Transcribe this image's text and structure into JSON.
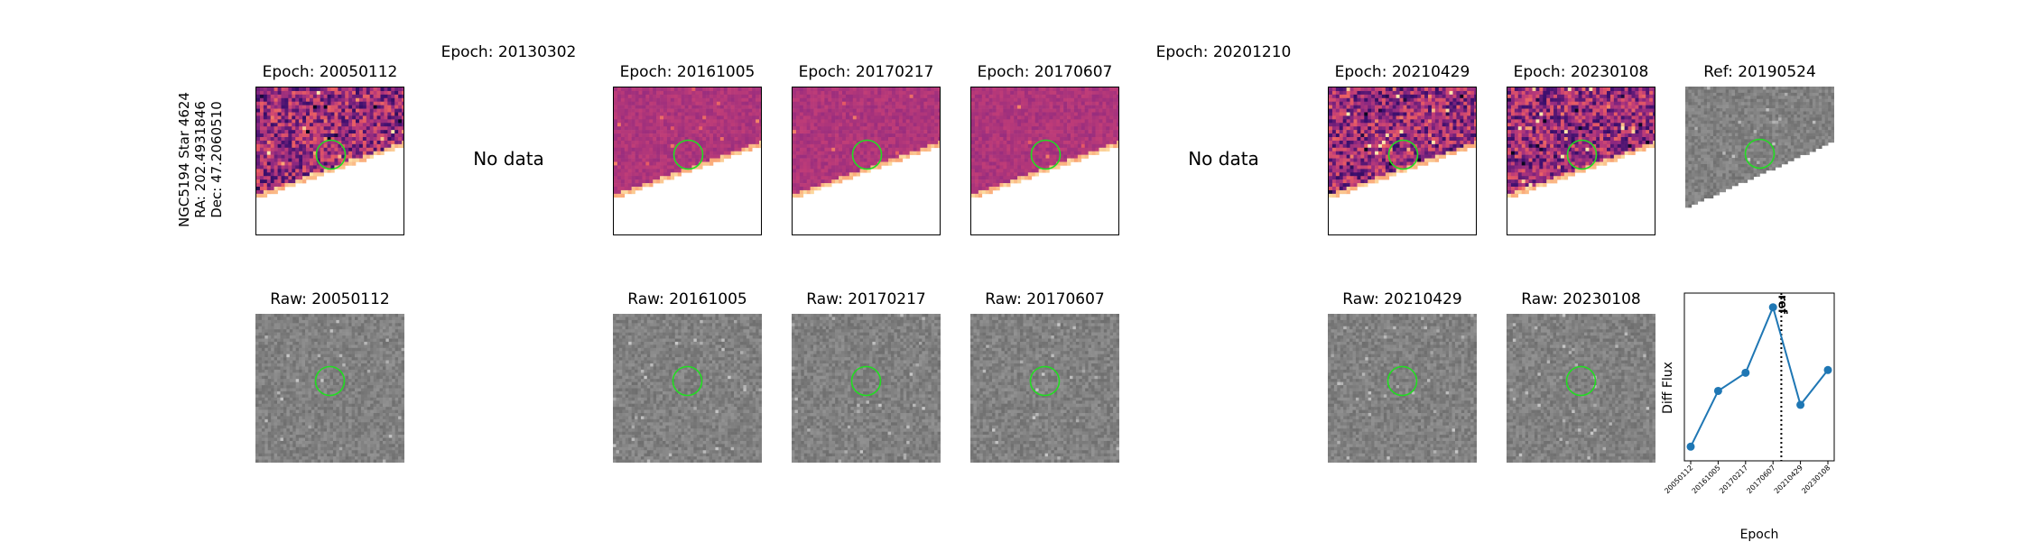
{
  "target": {
    "lines": [
      "NGC5194 Star 4624",
      "RA: 202.4931846",
      "Dec: 47.2060510"
    ]
  },
  "top_row": [
    {
      "title": "Epoch: 20050112",
      "kind": "diff"
    },
    {
      "title": "Epoch: 20130302",
      "kind": "nodata",
      "text": "No data"
    },
    {
      "title": "Epoch: 20161005",
      "kind": "diff"
    },
    {
      "title": "Epoch: 20170217",
      "kind": "diff"
    },
    {
      "title": "Epoch: 20170607",
      "kind": "diff"
    },
    {
      "title": "Epoch: 20201210",
      "kind": "nodata",
      "text": "No data"
    },
    {
      "title": "Epoch: 20210429",
      "kind": "diff"
    },
    {
      "title": "Epoch: 20230108",
      "kind": "diff"
    },
    {
      "title": "Ref: 20190524",
      "kind": "ref"
    }
  ],
  "bottom_row": [
    {
      "title": "Raw: 20050112",
      "column": 0
    },
    {
      "title": "Raw: 20161005",
      "column": 2
    },
    {
      "title": "Raw: 20170217",
      "column": 3
    },
    {
      "title": "Raw: 20170607",
      "column": 4
    },
    {
      "title": "Raw: 20210429",
      "column": 6
    },
    {
      "title": "Raw: 20230108",
      "column": 7
    }
  ],
  "colors": {
    "aperture": "#22dd22",
    "line": "#1f77b4",
    "ref_line": "#000000"
  },
  "chart_data": {
    "type": "line",
    "xlabel": "Epoch",
    "ylabel": "Diff Flux",
    "categories": [
      "20050112",
      "20161005",
      "20170217",
      "20170607",
      "20210429",
      "20230108"
    ],
    "values": [
      0.05,
      0.45,
      0.58,
      1.05,
      0.35,
      0.6
    ],
    "ylim": [
      0.0,
      1.1
    ],
    "ref_line": {
      "label": "ref",
      "position_between": [
        3,
        4
      ],
      "style": "dotted"
    },
    "yticks_shown": false
  }
}
